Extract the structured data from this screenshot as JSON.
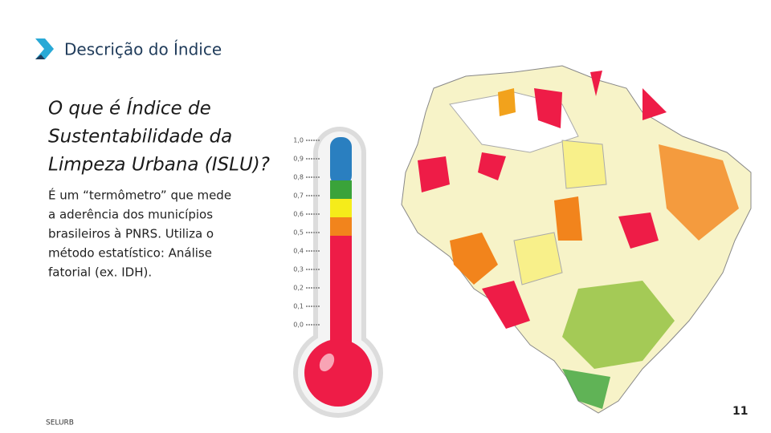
{
  "header": {
    "title": "Descrição do Índice"
  },
  "question": [
    "O que é Índice de",
    "Sustentabilidade da",
    "Limpeza Urbana (ISLU)?"
  ],
  "body": [
    "É um “termômetro” que mede",
    "a aderência dos municípios",
    "brasileiros à PNRS.  Utiliza o",
    "método estatístico: Análise",
    "fatorial (ex. IDH)."
  ],
  "thermometer": {
    "ticks": [
      "1,0",
      "0,9",
      "0,8",
      "0,7",
      "0,6",
      "0,5",
      "0,4",
      "0,3",
      "0,2",
      "0,1",
      "0,0"
    ]
  },
  "footer": {
    "brand": "SELURB",
    "page": "11"
  }
}
